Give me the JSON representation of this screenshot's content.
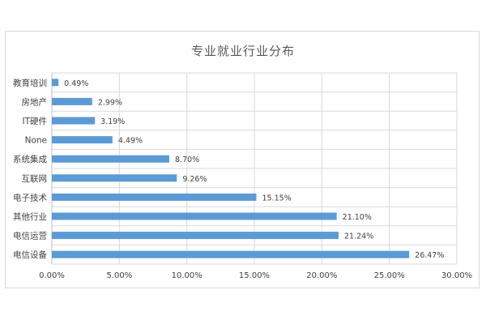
{
  "chart_data": {
    "type": "bar",
    "orientation": "horizontal",
    "title": "专业就业行业分布",
    "categories": [
      "教育培训",
      "房地产",
      "IT硬件",
      "None",
      "系统集成",
      "互联网",
      "电子技术",
      "其他行业",
      "电信运营",
      "电信设备"
    ],
    "values": [
      0.49,
      2.99,
      3.19,
      4.49,
      8.7,
      9.26,
      15.15,
      21.1,
      21.24,
      26.47
    ],
    "data_labels": [
      "0.49%",
      "2.99%",
      "3.19%",
      "4.49%",
      "8.70%",
      "9.26%",
      "15.15%",
      "21.10%",
      "21.24%",
      "26.47%"
    ],
    "xlim": [
      0,
      30
    ],
    "xticks": [
      "0.00%",
      "5.00%",
      "10.00%",
      "15.00%",
      "20.00%",
      "25.00%",
      "30.00%"
    ],
    "grid": true,
    "colors": {
      "bar": "#5b9bd5",
      "grid": "#d9d9d9",
      "text": "#404040",
      "title": "#595959"
    }
  }
}
